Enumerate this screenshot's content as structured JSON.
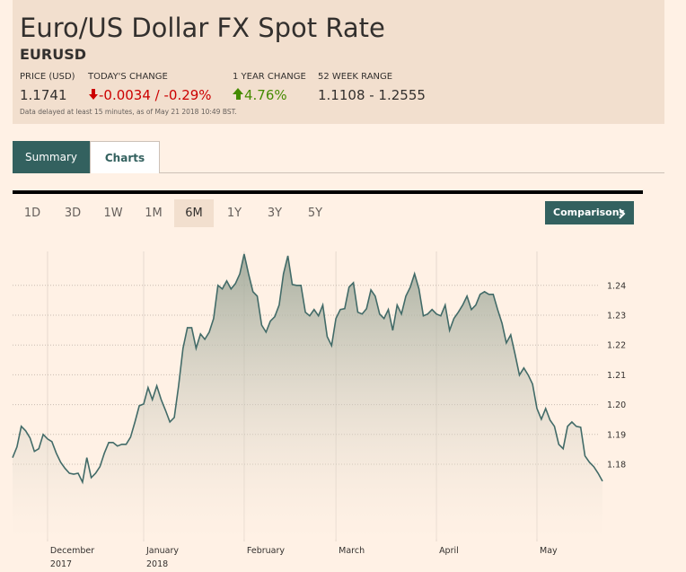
{
  "header": {
    "title": "Euro/US Dollar FX Spot Rate",
    "symbol": "EURUSD",
    "stats": [
      {
        "label": "PRICE (USD)",
        "value": "1.1741"
      },
      {
        "label": "TODAY'S CHANGE",
        "value": "-0.0034 / -0.29%"
      },
      {
        "label": "1 YEAR CHANGE",
        "value": "4.76%"
      },
      {
        "label": "52 WEEK RANGE",
        "value": "1.1108 - 1.2555"
      }
    ],
    "disclaimer": "Data delayed at least 15 minutes, as of May 21 2018 10:49 BST."
  },
  "tabs": [
    "Summary",
    "Charts"
  ],
  "ranges": [
    "1D",
    "3D",
    "1W",
    "1M",
    "6M",
    "1Y",
    "3Y",
    "5Y"
  ],
  "comparisons": "Comparisons",
  "chart_data": {
    "type": "area",
    "color": "#426b68",
    "values": [
      1.1822,
      1.1858,
      1.1927,
      1.1912,
      1.1888,
      1.1843,
      1.1852,
      1.19,
      1.1885,
      1.1876,
      1.1837,
      1.1807,
      1.1786,
      1.177,
      1.1767,
      1.177,
      1.174,
      1.1822,
      1.1755,
      1.177,
      1.1792,
      1.1837,
      1.1873,
      1.1873,
      1.1861,
      1.1867,
      1.1867,
      1.1891,
      1.1942,
      1.1996,
      1.2002,
      1.2057,
      1.2017,
      1.2063,
      1.2017,
      1.1981,
      1.1942,
      1.1957,
      1.2063,
      1.2189,
      1.2258,
      1.2258,
      1.2189,
      1.2237,
      1.2219,
      1.2243,
      1.2289,
      1.24,
      1.2388,
      1.2415,
      1.2388,
      1.2406,
      1.2439,
      1.2505,
      1.2439,
      1.2379,
      1.2364,
      1.2267,
      1.2243,
      1.228,
      1.2295,
      1.2334,
      1.2439,
      1.2499,
      1.2403,
      1.24,
      1.24,
      1.231,
      1.2298,
      1.2319,
      1.2298,
      1.2334,
      1.2228,
      1.2198,
      1.2289,
      1.2319,
      1.2322,
      1.2394,
      1.2409,
      1.231,
      1.2304,
      1.2322,
      1.2385,
      1.2364,
      1.2304,
      1.2289,
      1.2319,
      1.2249,
      1.2334,
      1.2304,
      1.2364,
      1.2394,
      1.2439,
      1.2388,
      1.2298,
      1.2304,
      1.2319,
      1.2304,
      1.2298,
      1.2334,
      1.2249,
      1.2289,
      1.231,
      1.2334,
      1.2364,
      1.2319,
      1.2334,
      1.237,
      1.2379,
      1.237,
      1.237,
      1.2319,
      1.2273,
      1.2207,
      1.2234,
      1.2168,
      1.2099,
      1.2123,
      1.2099,
      1.2069,
      1.1987,
      1.1951,
      1.1987,
      1.1948,
      1.1927,
      1.1867,
      1.1852,
      1.1927,
      1.1942,
      1.1927,
      1.1924,
      1.1828,
      1.1807,
      1.1792,
      1.177,
      1.1743
    ],
    "xlim": [
      0,
      135
    ],
    "xticks": [
      {
        "value": 8,
        "label": "December",
        "year": "2017"
      },
      {
        "value": 30,
        "label": "January",
        "year": "2018"
      },
      {
        "value": 53,
        "label": "February"
      },
      {
        "value": 74,
        "label": "March"
      },
      {
        "value": 97,
        "label": "April"
      },
      {
        "value": 120,
        "label": "May"
      }
    ],
    "ylim": [
      1.155,
      1.255
    ],
    "yticks": [
      1.18,
      1.19,
      {
        "value": 1.2,
        "label": "1.20"
      },
      1.21,
      1.22,
      1.23,
      1.24
    ],
    "grid": true
  }
}
